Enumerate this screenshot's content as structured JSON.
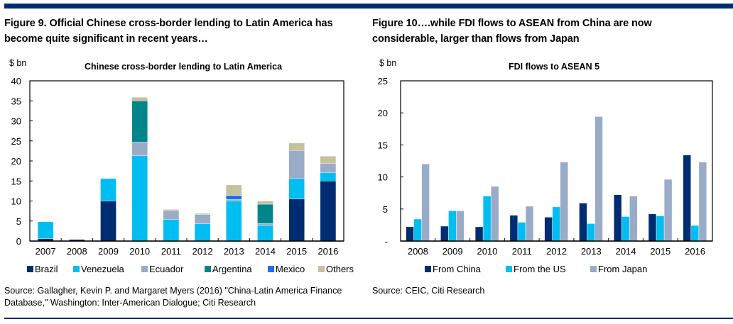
{
  "figures": [
    {
      "heading": "Figure 9. Official Chinese cross-border lending to Latin America has become quite significant in recent years…",
      "heading_lines": [
        "Figure 9. Official Chinese cross-border lending to Latin America has",
        "become quite significant in recent years…"
      ],
      "unit": "$ bn",
      "source_lines": [
        "Source: Gallagher, Kevin P. and Margaret Myers (2016) \"China-Latin America Finance",
        "Database,\" Washington: Inter-American Dialogue; Citi Research"
      ]
    },
    {
      "heading": "Figure 10….while FDI flows to ASEAN from China are now considerable, larger than flows from Japan",
      "heading_lines": [
        "Figure 10….while FDI flows to ASEAN from China are now",
        "considerable, larger than flows from Japan"
      ],
      "unit": "$ bn",
      "source_lines": [
        "Source: CEIC, Citi Research"
      ]
    }
  ],
  "chart_data": [
    {
      "type": "bar",
      "stacked": true,
      "title": "Chinese cross-border lending to Latin America",
      "xlabel": "",
      "ylabel": "$ bn",
      "ylim": [
        0,
        40
      ],
      "yticks": [
        0,
        5,
        10,
        15,
        20,
        25,
        30,
        35,
        40
      ],
      "ytick_labels": [
        "0",
        "5",
        "10",
        "15",
        "20",
        "25",
        "30",
        "35",
        "40"
      ],
      "categories": [
        "2007",
        "2008",
        "2009",
        "2010",
        "2011",
        "2012",
        "2013",
        "2014",
        "2015",
        "2016"
      ],
      "grid": false,
      "legend_position": "bottom",
      "series": [
        {
          "name": "Brazil",
          "color": "#002d72",
          "values": [
            0.6,
            0.4,
            10.0,
            0,
            0,
            0,
            0,
            0,
            10.5,
            15.0
          ]
        },
        {
          "name": "Venezuela",
          "color": "#00bdf2",
          "values": [
            4.2,
            0,
            5.6,
            21.3,
            5.4,
            4.3,
            10.0,
            3.9,
            5.1,
            2.1
          ]
        },
        {
          "name": "Ecuador",
          "color": "#9aabc8",
          "values": [
            0,
            0,
            0,
            3.4,
            2.2,
            2.1,
            0.4,
            0.5,
            7.0,
            2.3
          ]
        },
        {
          "name": "Argentina",
          "color": "#00868a",
          "values": [
            0,
            0,
            0,
            10.3,
            0,
            0.2,
            0,
            4.8,
            0,
            0
          ]
        },
        {
          "name": "Mexico",
          "color": "#1a6ff5",
          "values": [
            0,
            0,
            0,
            0,
            0,
            0,
            1.0,
            0,
            0,
            0
          ]
        },
        {
          "name": "Others",
          "color": "#c7c09c",
          "values": [
            0,
            0,
            0.1,
            0.9,
            0.3,
            0.3,
            2.6,
            0.8,
            1.9,
            1.8
          ]
        }
      ]
    },
    {
      "type": "bar",
      "stacked": false,
      "title": "FDI flows to ASEAN 5",
      "xlabel": "",
      "ylabel": "$ bn",
      "ylim": [
        0,
        25
      ],
      "yticks": [
        0,
        5,
        10,
        15,
        20,
        25
      ],
      "ytick_labels": [
        "-",
        "5",
        "10",
        "15",
        "20",
        "25"
      ],
      "categories": [
        "2008",
        "2009",
        "2010",
        "2011",
        "2012",
        "2013",
        "2014",
        "2015",
        "2016"
      ],
      "grid": false,
      "legend_position": "bottom",
      "series": [
        {
          "name": "From China",
          "color": "#002d72",
          "values": [
            2.2,
            2.3,
            2.2,
            4.0,
            3.7,
            5.9,
            7.2,
            4.2,
            13.4
          ]
        },
        {
          "name": "From the US",
          "color": "#00bdf2",
          "values": [
            3.4,
            4.7,
            7.0,
            2.9,
            5.3,
            2.7,
            3.8,
            3.9,
            2.4
          ]
        },
        {
          "name": "From Japan",
          "color": "#9aabc8",
          "values": [
            12.0,
            4.7,
            8.5,
            5.4,
            12.3,
            19.4,
            7.0,
            9.6,
            12.3
          ]
        }
      ]
    }
  ]
}
